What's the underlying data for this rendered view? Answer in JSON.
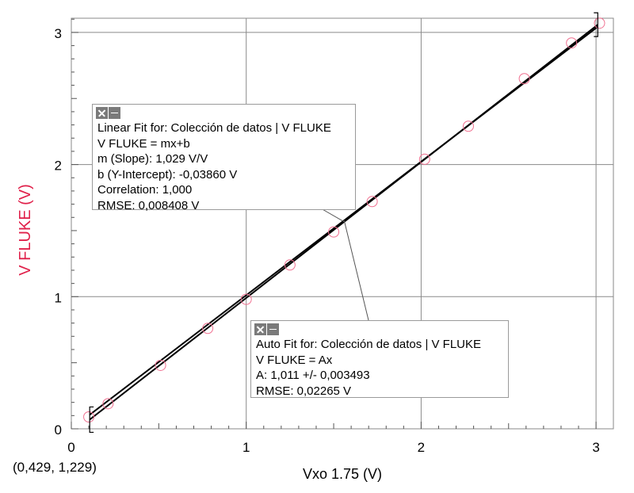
{
  "chart_data": {
    "type": "scatter",
    "xlabel": "Vxo 1.75 (V)",
    "ylabel": "V FLUKE (V)",
    "xlim": [
      0,
      3.1
    ],
    "ylim": [
      0,
      3.1
    ],
    "xticks": [
      "0",
      "1",
      "2",
      "3"
    ],
    "yticks": [
      "0",
      "1",
      "2",
      "3"
    ],
    "grid": true,
    "ylabel_color": "#e0204a",
    "marker_color": "#f07090",
    "series": [
      {
        "x": [
          0.1,
          0.21,
          0.51,
          0.78,
          1.0,
          1.25,
          1.5,
          1.72,
          2.02,
          2.27,
          2.59,
          2.86,
          3.02
        ],
        "y": [
          0.09,
          0.19,
          0.48,
          0.76,
          0.98,
          1.24,
          1.49,
          1.72,
          2.04,
          2.29,
          2.65,
          2.92,
          3.07
        ]
      }
    ],
    "fits": [
      {
        "type": "linear",
        "m": 1.029,
        "b": -0.0386,
        "x_range": [
          0.105,
          3.01
        ]
      },
      {
        "type": "proportional",
        "A": 1.011,
        "x_range": [
          0.105,
          3.01
        ]
      }
    ],
    "fit_range_brackets": [
      0.105,
      3.01
    ]
  },
  "linear_fit": {
    "title": "Linear Fit for: Colección de datos | V FLUKE",
    "equation": "V FLUKE = mx+b",
    "slope": "m (Slope): 1,029 V/V",
    "intercept": "b (Y-Intercept): -0,03860 V",
    "correlation": "Correlation: 1,000",
    "rmse": "RMSE: 0,008408 V"
  },
  "auto_fit": {
    "title": "Auto Fit for: Colección de datos | V FLUKE",
    "equation": "V FLUKE = Ax",
    "a_value": "A: 1,011 +/- 0,003493",
    "rmse": "RMSE: 0,02265 V"
  },
  "coordinate_readout": "(0,429, 1,229)"
}
